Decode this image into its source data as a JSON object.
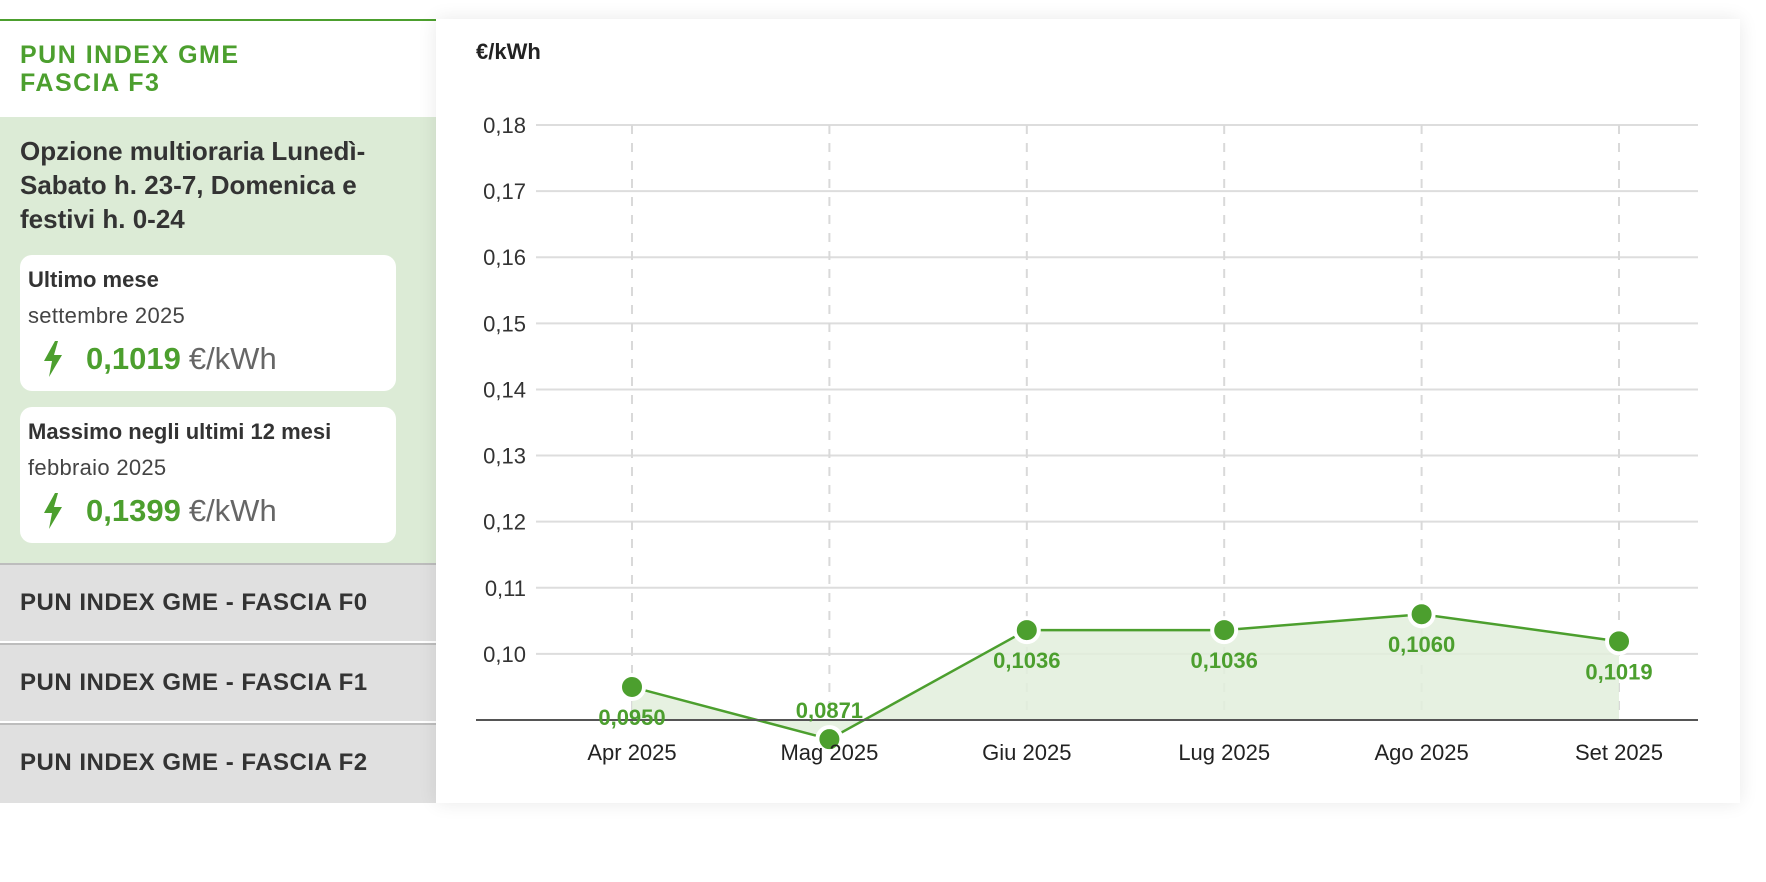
{
  "sidebar": {
    "active_title": "PUN INDEX GME\nFASCIA F3",
    "description": "Opzione multioraria Lunedì-Sabato h. 23-7, Domenica e festivi h. 0-24",
    "cards": [
      {
        "label": "Ultimo mese",
        "period": "settembre 2025",
        "value": "0,1019",
        "unit": "€/kWh",
        "icon": "lightning-bolt-icon"
      },
      {
        "label": "Massimo negli ultimi 12 mesi",
        "period": "febbraio 2025",
        "value": "0,1399",
        "unit": "€/kWh",
        "icon": "lightning-bolt-icon"
      }
    ],
    "tabs": [
      {
        "label": "PUN INDEX GME - FASCIA F0"
      },
      {
        "label": "PUN INDEX GME - FASCIA F1"
      },
      {
        "label": "PUN INDEX GME - FASCIA F2"
      }
    ]
  },
  "colors": {
    "accent": "#4c9f2e",
    "panel_bg": "#dcebd6",
    "tab_bg": "#e0e0e0",
    "area_fill": "#e2efdc",
    "text": "#333333"
  },
  "chart_data": {
    "type": "area",
    "unit_label": "€/kWh",
    "categories": [
      "Apr 2025",
      "Mag 2025",
      "Giu 2025",
      "Lug 2025",
      "Ago 2025",
      "Set 2025"
    ],
    "series": [
      {
        "values": [
          0.095,
          0.0871,
          0.1036,
          0.1036,
          0.106,
          0.1019
        ],
        "labels": [
          "0,0950",
          "0,0871",
          "0,1036",
          "0,1036",
          "0,1060",
          "0,1019"
        ]
      }
    ],
    "ylim": [
      0.09,
      0.18
    ],
    "yticks": [
      0.1,
      0.11,
      0.12,
      0.13,
      0.14,
      0.15,
      0.16,
      0.17,
      0.18
    ],
    "ytick_labels": [
      "0,10",
      "0,11",
      "0,12",
      "0,13",
      "0,14",
      "0,15",
      "0,16",
      "0,17",
      "0,18"
    ],
    "label_positions": [
      "below",
      "above",
      "below",
      "below",
      "below",
      "below"
    ],
    "grid": true,
    "legend": "none"
  }
}
